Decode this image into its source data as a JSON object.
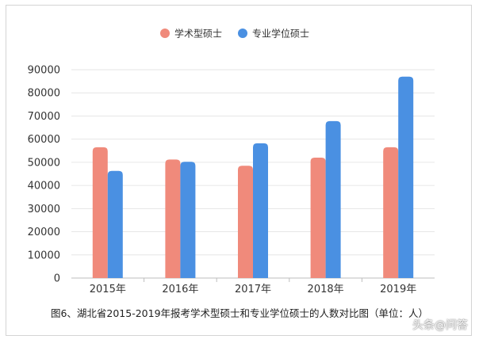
{
  "chart_data": {
    "type": "bar",
    "categories": [
      "2015年",
      "2016年",
      "2017年",
      "2018年",
      "2019年"
    ],
    "series": [
      {
        "name": "学术型硕士",
        "color": "#f08a7b",
        "values": [
          56500,
          51200,
          48500,
          52000,
          56500
        ]
      },
      {
        "name": "专业学位硕士",
        "color": "#4a90e2",
        "values": [
          46300,
          50200,
          58200,
          67800,
          87000
        ]
      }
    ],
    "yticks": [
      0,
      10000,
      20000,
      30000,
      40000,
      50000,
      60000,
      70000,
      80000,
      90000
    ],
    "ylim": [
      0,
      90000
    ],
    "grid": true,
    "legend_position": "top-center",
    "caption": "图6、湖北省2015-2019年报考学术型硕士和专业学位硕士的人数对比图（单位：人）"
  },
  "watermark": "头条@问答"
}
